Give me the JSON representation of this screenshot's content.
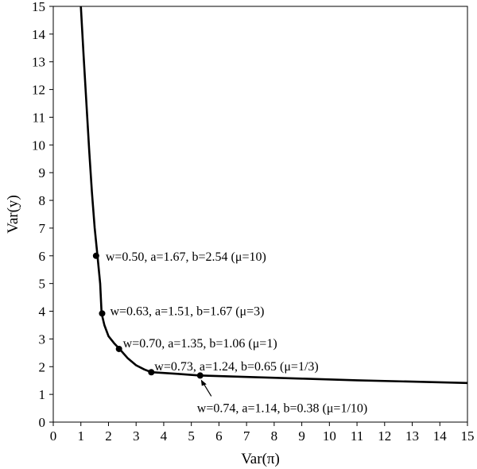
{
  "chart_data": {
    "type": "line",
    "xlabel": "Var(π)",
    "ylabel": "Var(y)",
    "xlim": [
      0,
      15
    ],
    "ylim": [
      0,
      15
    ],
    "x_ticks": [
      0,
      1,
      2,
      3,
      4,
      5,
      6,
      7,
      8,
      9,
      10,
      11,
      12,
      13,
      14,
      15
    ],
    "y_ticks": [
      0,
      1,
      2,
      3,
      4,
      5,
      6,
      7,
      8,
      9,
      10,
      11,
      12,
      13,
      14,
      15
    ],
    "grid": false,
    "legend": "none",
    "line_color": "#000000",
    "series": [
      {
        "x": [
          1.0,
          1.1,
          1.2,
          1.3,
          1.4,
          1.5,
          1.6,
          1.7,
          1.75,
          1.85,
          2.0,
          2.2,
          2.4,
          2.7,
          3.0,
          3.3,
          3.55,
          4.5,
          5.32,
          7.0,
          9.0,
          11.0,
          13.0,
          15.0
        ],
        "y": [
          15.0,
          13.2,
          11.5,
          9.8,
          8.3,
          7.0,
          6.0,
          5.0,
          3.92,
          3.5,
          3.1,
          2.85,
          2.64,
          2.3,
          2.05,
          1.9,
          1.8,
          1.74,
          1.68,
          1.63,
          1.57,
          1.51,
          1.46,
          1.41
        ]
      }
    ],
    "points": [
      {
        "x": 1.55,
        "y": 6.0,
        "label": "w=0.50, a=1.67, b=2.54 (μ=10)"
      },
      {
        "x": 1.77,
        "y": 3.92,
        "label": "w=0.63, a=1.51, b=1.67 (μ=3)"
      },
      {
        "x": 2.38,
        "y": 2.64,
        "label": "w=0.70, a=1.35, b=1.06 (μ=1)"
      },
      {
        "x": 3.55,
        "y": 1.8,
        "label": "w=0.73, a=1.24, b=0.65 (μ=1/3)"
      },
      {
        "x": 5.32,
        "y": 1.68,
        "label": "w=0.74, a=1.14, b=0.38 (μ=1/10)"
      }
    ]
  }
}
